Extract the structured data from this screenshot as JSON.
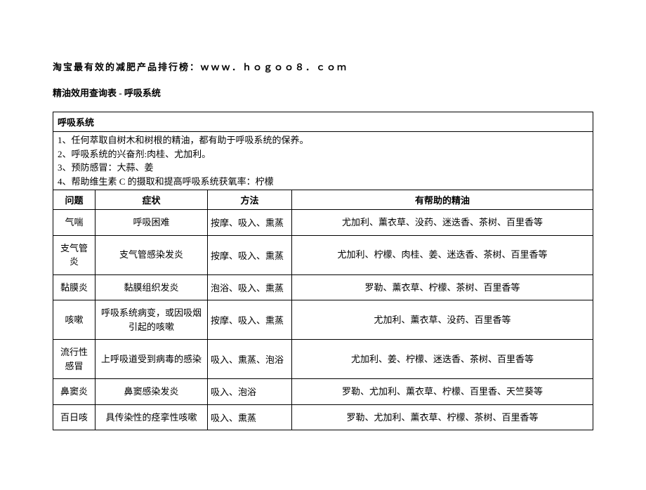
{
  "header": "淘宝最有效的减肥产品排行榜：ｗｗｗ．ｈｏｇｏｏ８．ｃｏｍ",
  "subtitle": "精油效用查询表 - 呼吸系统",
  "section_title": "呼吸系统",
  "intro_lines": [
    "1、任何萃取自树木和树根的精油，都有助于呼吸系统的保养。",
    "2、呼吸系统的兴奋剂:肉桂、尤加利。",
    "3、预防感冒：大蒜、姜",
    "4、帮助维生素 C 的摄取和提高呼吸系统获氧率：柠檬"
  ],
  "columns": {
    "problem": "问题",
    "symptom": "症状",
    "method": "方法",
    "oils": "有帮助的精油"
  },
  "rows": [
    {
      "problem": "气喘",
      "symptom": "呼吸困难",
      "method": "按摩、吸入、熏蒸",
      "oils": "尤加利、薰衣草、没药、迷迭香、茶树、百里香等"
    },
    {
      "problem": "支气管炎",
      "symptom": "支气管感染发炎",
      "method": "按摩、吸入、熏蒸",
      "oils": "尤加利、柠檬、肉桂、姜、迷迭香、茶树、百里香等"
    },
    {
      "problem": "黏膜炎",
      "symptom": "黏膜组织发炎",
      "method": "泡浴、吸入、熏蒸",
      "oils": "罗勒、薰衣草、柠檬、茶树、百里香等"
    },
    {
      "problem": "咳嗽",
      "symptom": "呼吸系统病变，或因吸烟引起的咳嗽",
      "method": "按摩、吸入、熏蒸",
      "oils": "尤加利、薰衣草、没药、百里香等"
    },
    {
      "problem": "流行性感冒",
      "symptom": "上呼吸道受到病毒的感染",
      "method": "吸入、熏蒸、泡浴",
      "oils": "尤加利、姜、柠檬、迷迭香、茶树、百里香等"
    },
    {
      "problem": "鼻窦炎",
      "symptom": "鼻窦感染发炎",
      "method": "吸入、泡浴",
      "oils": "罗勒、尤加利、薰衣草、柠檬、百里香、天竺葵等"
    },
    {
      "problem": "百日咳",
      "symptom": "具传染性的痉挛性咳嗽",
      "method": "吸入、熏蒸",
      "oils": "罗勒、尤加利、薰衣草、柠檬、茶树、百里香等"
    }
  ]
}
